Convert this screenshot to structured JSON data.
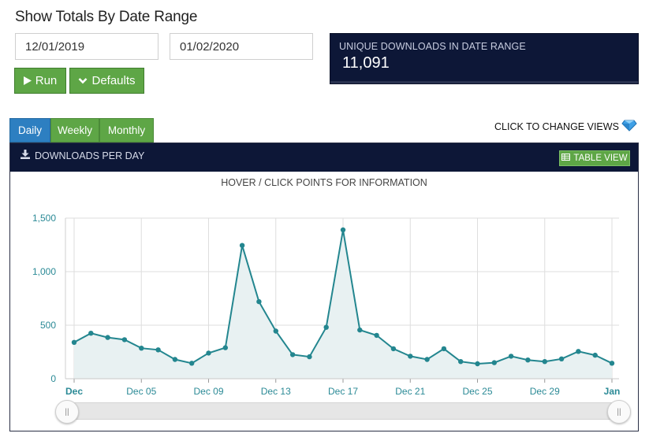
{
  "page": {
    "title": "Show Totals By Date Range"
  },
  "date_range": {
    "start": "12/01/2019",
    "end": "01/02/2020"
  },
  "buttons": {
    "run_label": "Run",
    "defaults_label": "Defaults"
  },
  "totals": {
    "label": "UNIQUE DOWNLOADS IN DATE RANGE",
    "value": "11,091"
  },
  "tabs": [
    {
      "label": "Daily",
      "active": true
    },
    {
      "label": "Weekly",
      "active": false
    },
    {
      "label": "Monthly",
      "active": false
    }
  ],
  "change_views_label": "CLICK TO CHANGE VIEWS",
  "panel": {
    "title": "DOWNLOADS PER DAY",
    "table_view_label": "TABLE VIEW",
    "hint": "HOVER / CLICK POINTS FOR INFORMATION"
  },
  "colors": {
    "navy": "#0d1737",
    "green": "#5ea646",
    "blue_tab": "#2d7fc1",
    "series": "#23868f",
    "area_fill": "#e8f1f2"
  },
  "chart_data": {
    "type": "area",
    "title": "",
    "xlabel": "",
    "ylabel": "",
    "ylim": [
      0,
      1500
    ],
    "yticks": [
      "0",
      "500",
      "1,000",
      "1,500"
    ],
    "x_tick_labels": [
      {
        "label": "Dec",
        "day_index": 0,
        "bold": true
      },
      {
        "label": "Dec 05",
        "day_index": 4,
        "bold": false
      },
      {
        "label": "Dec 09",
        "day_index": 8,
        "bold": false
      },
      {
        "label": "Dec 13",
        "day_index": 12,
        "bold": false
      },
      {
        "label": "Dec 17",
        "day_index": 16,
        "bold": false
      },
      {
        "label": "Dec 21",
        "day_index": 20,
        "bold": false
      },
      {
        "label": "Dec 25",
        "day_index": 24,
        "bold": false
      },
      {
        "label": "Dec 29",
        "day_index": 28,
        "bold": false
      },
      {
        "label": "Jan",
        "day_index": 32,
        "bold": true
      }
    ],
    "x": [
      "2019-12-01",
      "2019-12-02",
      "2019-12-03",
      "2019-12-04",
      "2019-12-05",
      "2019-12-06",
      "2019-12-07",
      "2019-12-08",
      "2019-12-09",
      "2019-12-10",
      "2019-12-11",
      "2019-12-12",
      "2019-12-13",
      "2019-12-14",
      "2019-12-15",
      "2019-12-16",
      "2019-12-17",
      "2019-12-18",
      "2019-12-19",
      "2019-12-20",
      "2019-12-21",
      "2019-12-22",
      "2019-12-23",
      "2019-12-24",
      "2019-12-25",
      "2019-12-26",
      "2019-12-27",
      "2019-12-28",
      "2019-12-29",
      "2019-12-30",
      "2019-12-31",
      "2020-01-01",
      "2020-01-02"
    ],
    "series": [
      {
        "values": [
          340,
          425,
          385,
          365,
          285,
          270,
          180,
          145,
          240,
          290,
          1245,
          720,
          445,
          225,
          205,
          480,
          1390,
          455,
          405,
          280,
          210,
          180,
          280,
          160,
          140,
          150,
          210,
          175,
          160,
          185,
          255,
          220,
          145
        ]
      }
    ]
  }
}
